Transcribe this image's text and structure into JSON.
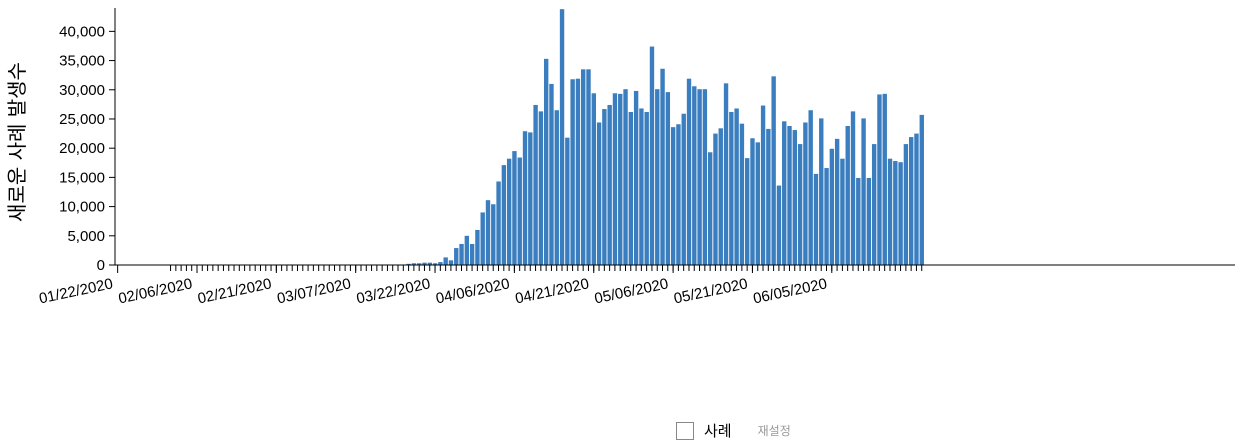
{
  "chart_data": {
    "type": "bar",
    "title": "",
    "xlabel": "",
    "ylabel": "새로운 사례 발생수",
    "ylim": [
      0,
      44000
    ],
    "yticks": [
      0,
      5000,
      10000,
      15000,
      20000,
      25000,
      30000,
      35000,
      40000
    ],
    "ytick_labels": [
      "0",
      "5,000",
      "10,000",
      "15,000",
      "20,000",
      "25,000",
      "30,000",
      "35,000",
      "40,000"
    ],
    "xtick_labels": [
      "01/22/2020",
      "02/06/2020",
      "02/21/2020",
      "03/07/2020",
      "03/22/2020",
      "04/06/2020",
      "04/21/2020",
      "05/06/2020",
      "05/21/2020",
      "06/05/2020"
    ],
    "x_start": "01/22/2020",
    "color": "#3a7ebf",
    "values": [
      0,
      0,
      0,
      0,
      0,
      0,
      0,
      0,
      0,
      0,
      0,
      0,
      0,
      0,
      0,
      0,
      0,
      0,
      0,
      0,
      0,
      0,
      0,
      0,
      0,
      0,
      0,
      0,
      0,
      0,
      0,
      0,
      0,
      0,
      0,
      0,
      0,
      0,
      0,
      0,
      0,
      0,
      0,
      0,
      0,
      0,
      0,
      0,
      0,
      0,
      0,
      0,
      0,
      0,
      0,
      200,
      300,
      300,
      400,
      400,
      300,
      500,
      1300,
      800,
      2900,
      3600,
      5000,
      3600,
      6000,
      9000,
      11100,
      10400,
      14300,
      17100,
      18200,
      19500,
      18400,
      22900,
      22700,
      27400,
      26300,
      35300,
      31000,
      26500,
      43800,
      21800,
      31800,
      31900,
      33500,
      33500,
      29400,
      24400,
      26700,
      27400,
      29400,
      29300,
      30100,
      26200,
      29800,
      26800,
      26200,
      37400,
      30100,
      33600,
      29600,
      23600,
      24100,
      25900,
      31900,
      30600,
      30100,
      30100,
      19300,
      22500,
      23400,
      31100,
      26200,
      26800,
      24200,
      18300,
      21700,
      21000,
      27300,
      23300,
      32300,
      13600,
      24600,
      23800,
      23100,
      20700,
      24400,
      26500,
      15600,
      25100,
      16600,
      19900,
      21600,
      18200,
      23800,
      26300,
      14900,
      25100,
      14900,
      20700,
      29200,
      29300,
      18200,
      17800,
      17600,
      20700,
      21900,
      22500,
      25700
    ]
  },
  "legend": {
    "label": "사례",
    "reset": "재설정"
  }
}
